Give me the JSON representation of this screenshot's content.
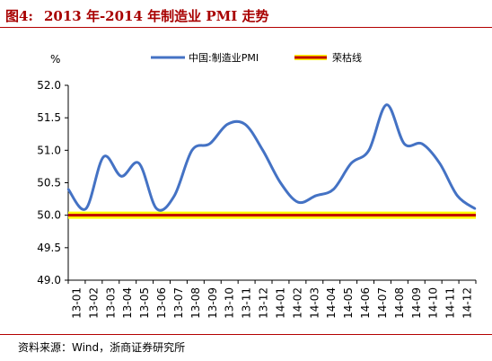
{
  "figure": {
    "label": "图4:",
    "title": "2013 年-2014 年制造业 PMI 走势"
  },
  "source": "资料来源：Wind，浙商证券研究所",
  "chart_data": {
    "type": "line",
    "ylabel": "%",
    "ylim": [
      49.0,
      52.0
    ],
    "yticks": [
      "52.0",
      "51.5",
      "51.0",
      "50.5",
      "50.0",
      "49.5",
      "49.0"
    ],
    "categories": [
      "13-01",
      "13-02",
      "13-03",
      "13-04",
      "13-05",
      "13-06",
      "13-07",
      "13-08",
      "13-09",
      "13-10",
      "13-11",
      "13-12",
      "14-01",
      "14-02",
      "14-03",
      "14-04",
      "14-05",
      "14-06",
      "14-07",
      "14-08",
      "14-09",
      "14-10",
      "14-11",
      "14-12"
    ],
    "series": [
      {
        "name": "中国:制造业PMI",
        "color": "#4472c4",
        "values": [
          50.4,
          50.1,
          50.9,
          50.6,
          50.8,
          50.1,
          50.3,
          51.0,
          51.1,
          51.4,
          51.4,
          51.0,
          50.5,
          50.2,
          50.3,
          50.4,
          50.8,
          51.0,
          51.7,
          51.1,
          51.1,
          50.8,
          50.3,
          50.1
        ]
      },
      {
        "name": "荣枯线",
        "color": "#c00000",
        "values": [
          50,
          50,
          50,
          50,
          50,
          50,
          50,
          50,
          50,
          50,
          50,
          50,
          50,
          50,
          50,
          50,
          50,
          50,
          50,
          50,
          50,
          50,
          50,
          50
        ]
      }
    ],
    "grid": false,
    "legend": "top-center"
  }
}
